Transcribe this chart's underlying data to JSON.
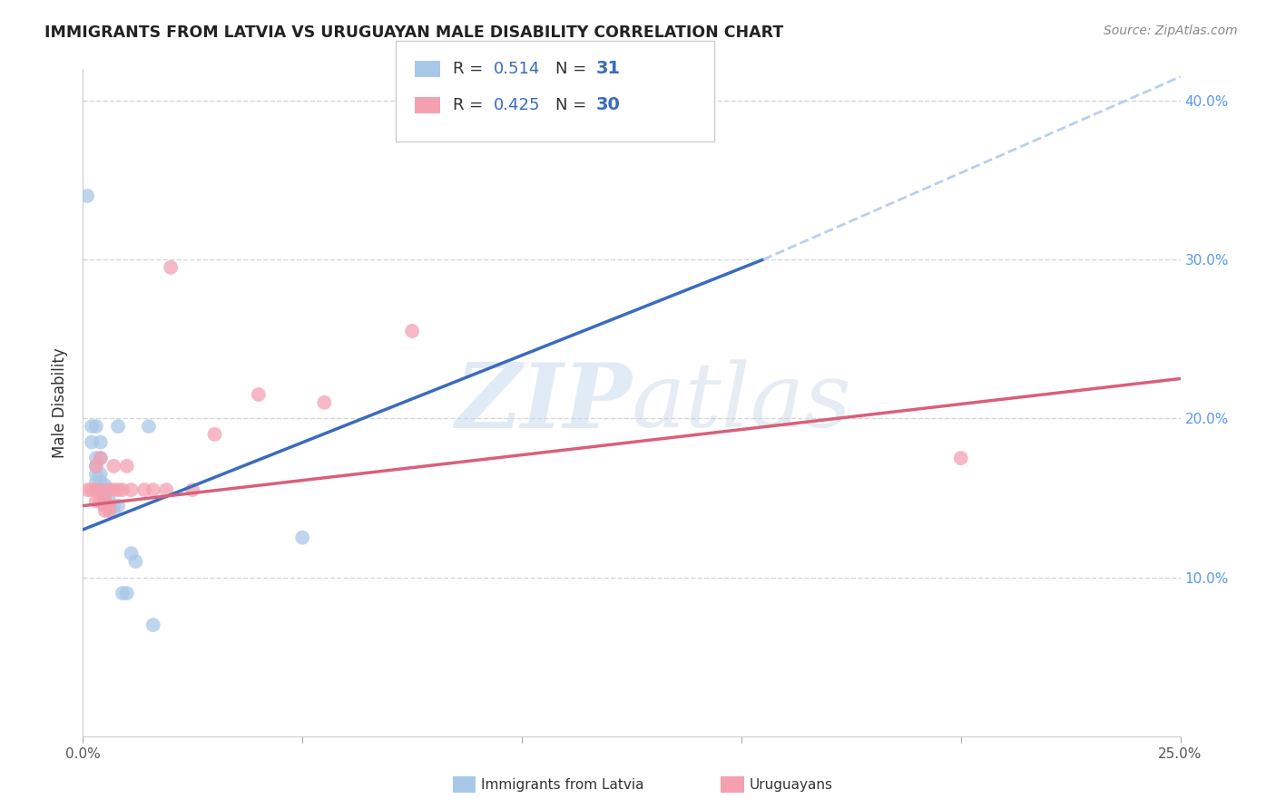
{
  "title": "IMMIGRANTS FROM LATVIA VS URUGUAYAN MALE DISABILITY CORRELATION CHART",
  "source": "Source: ZipAtlas.com",
  "ylabel": "Male Disability",
  "xlim": [
    0.0,
    0.25
  ],
  "ylim": [
    0.0,
    0.42
  ],
  "xticks": [
    0.0,
    0.05,
    0.1,
    0.15,
    0.2,
    0.25
  ],
  "yticks": [
    0.0,
    0.1,
    0.2,
    0.3,
    0.4
  ],
  "ytick_labels": [
    "",
    "10.0%",
    "20.0%",
    "30.0%",
    "40.0%"
  ],
  "xtick_labels": [
    "0.0%",
    "",
    "",
    "",
    "",
    "25.0%"
  ],
  "blue_R": 0.514,
  "blue_N": 31,
  "pink_R": 0.425,
  "pink_N": 30,
  "blue_color": "#a8c8e8",
  "pink_color": "#f4a0b0",
  "blue_line_color": "#3a6bbf",
  "pink_line_color": "#d9607a",
  "diagonal_line_color": "#b8d0ea",
  "blue_line_solid": [
    [
      0.0,
      0.13
    ],
    [
      0.155,
      0.3
    ]
  ],
  "blue_line_dashed": [
    [
      0.155,
      0.3
    ],
    [
      0.25,
      0.415
    ]
  ],
  "pink_line": [
    [
      0.0,
      0.145
    ],
    [
      0.25,
      0.225
    ]
  ],
  "blue_scatter": [
    [
      0.001,
      0.34
    ],
    [
      0.002,
      0.195
    ],
    [
      0.002,
      0.185
    ],
    [
      0.003,
      0.195
    ],
    [
      0.003,
      0.175
    ],
    [
      0.003,
      0.17
    ],
    [
      0.003,
      0.165
    ],
    [
      0.003,
      0.16
    ],
    [
      0.004,
      0.185
    ],
    [
      0.004,
      0.175
    ],
    [
      0.004,
      0.165
    ],
    [
      0.004,
      0.16
    ],
    [
      0.005,
      0.158
    ],
    [
      0.005,
      0.155
    ],
    [
      0.005,
      0.152
    ],
    [
      0.005,
      0.148
    ],
    [
      0.005,
      0.145
    ],
    [
      0.006,
      0.148
    ],
    [
      0.006,
      0.145
    ],
    [
      0.006,
      0.142
    ],
    [
      0.007,
      0.145
    ],
    [
      0.007,
      0.142
    ],
    [
      0.008,
      0.195
    ],
    [
      0.008,
      0.145
    ],
    [
      0.009,
      0.09
    ],
    [
      0.01,
      0.09
    ],
    [
      0.011,
      0.115
    ],
    [
      0.012,
      0.11
    ],
    [
      0.015,
      0.195
    ],
    [
      0.05,
      0.125
    ],
    [
      0.016,
      0.07
    ]
  ],
  "pink_scatter": [
    [
      0.001,
      0.155
    ],
    [
      0.002,
      0.155
    ],
    [
      0.003,
      0.155
    ],
    [
      0.003,
      0.17
    ],
    [
      0.003,
      0.148
    ],
    [
      0.004,
      0.175
    ],
    [
      0.004,
      0.155
    ],
    [
      0.004,
      0.148
    ],
    [
      0.005,
      0.148
    ],
    [
      0.005,
      0.145
    ],
    [
      0.005,
      0.142
    ],
    [
      0.006,
      0.145
    ],
    [
      0.006,
      0.142
    ],
    [
      0.006,
      0.155
    ],
    [
      0.007,
      0.17
    ],
    [
      0.007,
      0.155
    ],
    [
      0.008,
      0.155
    ],
    [
      0.009,
      0.155
    ],
    [
      0.01,
      0.17
    ],
    [
      0.011,
      0.155
    ],
    [
      0.014,
      0.155
    ],
    [
      0.016,
      0.155
    ],
    [
      0.019,
      0.155
    ],
    [
      0.025,
      0.155
    ],
    [
      0.03,
      0.19
    ],
    [
      0.04,
      0.215
    ],
    [
      0.055,
      0.21
    ],
    [
      0.02,
      0.295
    ],
    [
      0.075,
      0.255
    ],
    [
      0.2,
      0.175
    ]
  ],
  "background_color": "#ffffff",
  "grid_color": "#cccccc",
  "watermark_zip": "ZIP",
  "watermark_atlas": "atlas"
}
